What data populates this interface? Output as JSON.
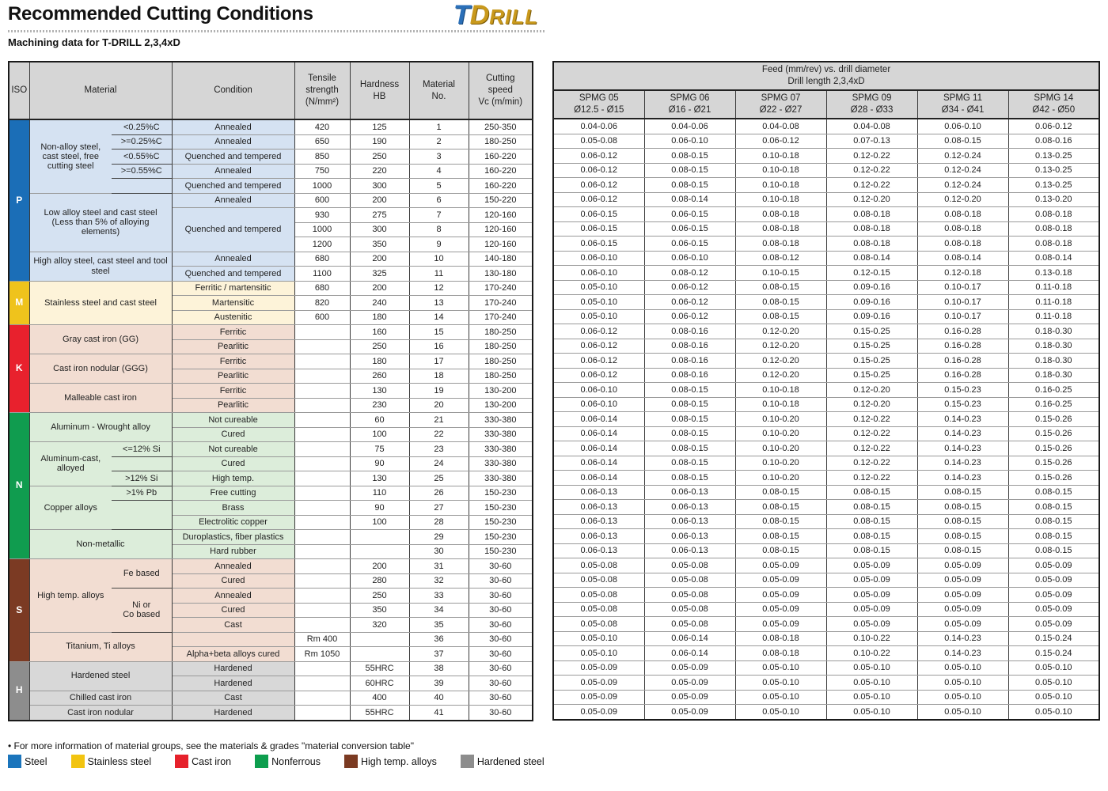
{
  "header": {
    "title": "Recommended Cutting Conditions",
    "subtitle": "Machining data for T-DRILL 2,3,4xD",
    "logo": {
      "t": "T",
      "d": "D",
      "rill": "RILL"
    }
  },
  "left_table": {
    "headers": {
      "iso": "ISO",
      "material": "Material",
      "condition": "Condition",
      "tensile": "Tensile\nstrength\n(N/mm²)",
      "hardness": "Hardness\nHB",
      "material_no": "Material\nNo.",
      "cutting_speed": "Cutting\nspeed\nVc (m/min)"
    },
    "sections": [
      {
        "label": "P",
        "color": "#1b6eb7",
        "tint": "#d5e2f2",
        "from": 1,
        "to": 11
      },
      {
        "label": "M",
        "color": "#efc31c",
        "tint": "#fdf3d9",
        "from": 12,
        "to": 14
      },
      {
        "label": "K",
        "color": "#e8212d",
        "tint": "#f2ddd2",
        "from": 15,
        "to": 20
      },
      {
        "label": "N",
        "color": "#109c4f",
        "tint": "#dcedda",
        "from": 21,
        "to": 30
      },
      {
        "label": "S",
        "color": "#7b3a23",
        "tint": "#f2ddd2",
        "from": 31,
        "to": 37
      },
      {
        "label": "H",
        "color": "#8d8d8d",
        "tint": "#d8d8d8",
        "from": 38,
        "to": 41
      }
    ],
    "rows": [
      {
        "mat": {
          "text": "Non-alloy steel, cast steel, free cutting steel",
          "rows": 5
        },
        "sub": {
          "text": "<0.25%C",
          "u": 1
        },
        "cond": "Annealed",
        "t": "420",
        "h": "125",
        "n": "1",
        "vc": "250-350"
      },
      {
        "sub": {
          "text": ">=0.25%C",
          "u": 1
        },
        "cond": "Annealed",
        "t": "650",
        "h": "190",
        "n": "2",
        "vc": "180-250"
      },
      {
        "sub": {
          "text": "<0.55%C",
          "u": 1
        },
        "cond": "Quenched and tempered",
        "t": "850",
        "h": "250",
        "n": "3",
        "vc": "160-220"
      },
      {
        "sub": {
          "text": ">=0.55%C",
          "u": 1
        },
        "cond": "Annealed",
        "t": "750",
        "h": "220",
        "n": "4",
        "vc": "160-220"
      },
      {
        "sub": {
          "text": "",
          "u": 1
        },
        "cond": "Quenched and tempered",
        "t": "1000",
        "h": "300",
        "n": "5",
        "vc": "160-220"
      },
      {
        "mat": {
          "text": "Low alloy steel and cast steel (Less than 5% of alloying elements)",
          "rows": 4,
          "cols": 2
        },
        "cond": "Annealed",
        "t": "600",
        "h": "200",
        "n": "6",
        "vc": "150-220"
      },
      {
        "cond": {
          "text": "Quenched and tempered",
          "rows": 3
        },
        "t": "930",
        "h": "275",
        "n": "7",
        "vc": "120-160"
      },
      {
        "t": "1000",
        "h": "300",
        "n": "8",
        "vc": "120-160"
      },
      {
        "t": "1200",
        "h": "350",
        "n": "9",
        "vc": "120-160"
      },
      {
        "mat": {
          "text": "High alloy steel, cast steel and tool steel",
          "rows": 2,
          "cols": 2
        },
        "cond": "Annealed",
        "t": "680",
        "h": "200",
        "n": "10",
        "vc": "140-180"
      },
      {
        "cond": "Quenched and tempered",
        "t": "1100",
        "h": "325",
        "n": "11",
        "vc": "130-180"
      },
      {
        "mat": {
          "text": "Stainless steel and cast steel",
          "rows": 3,
          "cols": 2
        },
        "cond": "Ferritic / martensitic",
        "t": "680",
        "h": "200",
        "n": "12",
        "vc": "170-240"
      },
      {
        "cond": "Martensitic",
        "t": "820",
        "h": "240",
        "n": "13",
        "vc": "170-240"
      },
      {
        "cond": "Austenitic",
        "t": "600",
        "h": "180",
        "n": "14",
        "vc": "170-240"
      },
      {
        "mat": {
          "text": "Gray cast iron (GG)",
          "rows": 2,
          "cols": 2
        },
        "cond": "Ferritic",
        "t": "",
        "h": "160",
        "n": "15",
        "vc": "180-250"
      },
      {
        "cond": "Pearlitic",
        "t": "",
        "h": "250",
        "n": "16",
        "vc": "180-250"
      },
      {
        "mat": {
          "text": "Cast iron nodular (GGG)",
          "rows": 2,
          "cols": 2
        },
        "cond": "Ferritic",
        "t": "",
        "h": "180",
        "n": "17",
        "vc": "180-250"
      },
      {
        "cond": "Pearlitic",
        "t": "",
        "h": "260",
        "n": "18",
        "vc": "180-250"
      },
      {
        "mat": {
          "text": "Malleable cast iron",
          "rows": 2,
          "cols": 2
        },
        "cond": "Ferritic",
        "t": "",
        "h": "130",
        "n": "19",
        "vc": "130-200"
      },
      {
        "cond": "Pearlitic",
        "t": "",
        "h": "230",
        "n": "20",
        "vc": "130-200"
      },
      {
        "mat": {
          "text": "Aluminum - Wrought alloy",
          "rows": 2,
          "cols": 2
        },
        "cond": "Not cureable",
        "t": "",
        "h": "60",
        "n": "21",
        "vc": "330-380"
      },
      {
        "cond": "Cured",
        "t": "",
        "h": "100",
        "n": "22",
        "vc": "330-380"
      },
      {
        "mat": {
          "text": "Aluminum-cast, alloyed",
          "rows": 3
        },
        "sub": {
          "text": "<=12% Si",
          "u": 1
        },
        "cond": "Not cureable",
        "t": "",
        "h": "75",
        "n": "23",
        "vc": "330-380"
      },
      {
        "sub": {
          "text": "",
          "u": 1
        },
        "cond": "Cured",
        "t": "",
        "h": "90",
        "n": "24",
        "vc": "330-380"
      },
      {
        "sub": {
          "text": ">12% Si",
          "u": 1
        },
        "cond": "High temp.",
        "t": "",
        "h": "130",
        "n": "25",
        "vc": "330-380"
      },
      {
        "mat": {
          "text": "Copper alloys",
          "rows": 3
        },
        "sub": {
          "text": ">1% Pb",
          "u": 1
        },
        "cond": "Free cutting",
        "t": "",
        "h": "110",
        "n": "26",
        "vc": "150-230"
      },
      {
        "sub": {
          "text": "",
          "u": 0
        },
        "cond": "Brass",
        "t": "",
        "h": "90",
        "n": "27",
        "vc": "150-230"
      },
      {
        "sub": {
          "text": "",
          "u": 1
        },
        "cond": "Electrolitic copper",
        "t": "",
        "h": "100",
        "n": "28",
        "vc": "150-230"
      },
      {
        "mat": {
          "text": "Non-metallic",
          "rows": 2,
          "cols": 2
        },
        "cond": "Duroplastics, fiber plastics",
        "t": "",
        "h": "",
        "n": "29",
        "vc": "150-230"
      },
      {
        "cond": "Hard rubber",
        "t": "",
        "h": "",
        "n": "30",
        "vc": "150-230"
      },
      {
        "mat": {
          "text": "High temp. alloys",
          "rows": 5
        },
        "sub": {
          "text": "Fe based",
          "rows": 2,
          "u": 1
        },
        "cond": "Annealed",
        "t": "",
        "h": "200",
        "n": "31",
        "vc": "30-60"
      },
      {
        "cond": "Cured",
        "t": "",
        "h": "280",
        "n": "32",
        "vc": "30-60"
      },
      {
        "sub": {
          "text": "Ni or\nCo based",
          "rows": 3,
          "u": 1
        },
        "cond": "Annealed",
        "t": "",
        "h": "250",
        "n": "33",
        "vc": "30-60"
      },
      {
        "cond": "Cured",
        "t": "",
        "h": "350",
        "n": "34",
        "vc": "30-60"
      },
      {
        "cond": "Cast",
        "t": "",
        "h": "320",
        "n": "35",
        "vc": "30-60"
      },
      {
        "mat": {
          "text": "Titanium, Ti alloys",
          "rows": 2,
          "cols": 2
        },
        "cond": "",
        "t": "Rm 400",
        "h": "",
        "n": "36",
        "vc": "30-60"
      },
      {
        "cond": "Alpha+beta alloys cured",
        "t": "Rm 1050",
        "h": "",
        "n": "37",
        "vc": "30-60"
      },
      {
        "mat": {
          "text": "Hardened steel",
          "rows": 2,
          "cols": 2
        },
        "cond": "Hardened",
        "t": "",
        "h": "55HRC",
        "n": "38",
        "vc": "30-60"
      },
      {
        "cond": "Hardened",
        "t": "",
        "h": "60HRC",
        "n": "39",
        "vc": "30-60"
      },
      {
        "mat": {
          "text": "Chilled cast iron",
          "cols": 2
        },
        "cond": "Cast",
        "t": "",
        "h": "400",
        "n": "40",
        "vc": "30-60"
      },
      {
        "mat": {
          "text": "Cast iron nodular",
          "cols": 2
        },
        "cond": "Hardened",
        "t": "",
        "h": "55HRC",
        "n": "41",
        "vc": "30-60"
      }
    ]
  },
  "right_table": {
    "title": "Feed (mm/rev) vs. drill diameter\nDrill length 2,3,4xD",
    "columns": [
      {
        "name": "SPMG 05",
        "range": "Ø12.5 - Ø15"
      },
      {
        "name": "SPMG 06",
        "range": "Ø16 - Ø21"
      },
      {
        "name": "SPMG 07",
        "range": "Ø22 - Ø27"
      },
      {
        "name": "SPMG 09",
        "range": "Ø28 - Ø33"
      },
      {
        "name": "SPMG 11",
        "range": "Ø34 - Ø41"
      },
      {
        "name": "SPMG 14",
        "range": "Ø42 - Ø50"
      }
    ],
    "rows": [
      [
        "0.04-0.06",
        "0.04-0.06",
        "0.04-0.08",
        "0.04-0.08",
        "0.06-0.10",
        "0.06-0.12"
      ],
      [
        "0.05-0.08",
        "0.06-0.10",
        "0.06-0.12",
        "0.07-0.13",
        "0.08-0.15",
        "0.08-0.16"
      ],
      [
        "0.06-0.12",
        "0.08-0.15",
        "0.10-0.18",
        "0.12-0.22",
        "0.12-0.24",
        "0.13-0.25"
      ],
      [
        "0.06-0.12",
        "0.08-0.15",
        "0.10-0.18",
        "0.12-0.22",
        "0.12-0.24",
        "0.13-0.25"
      ],
      [
        "0.06-0.12",
        "0.08-0.15",
        "0.10-0.18",
        "0.12-0.22",
        "0.12-0.24",
        "0.13-0.25"
      ],
      [
        "0.06-0.12",
        "0.08-0.14",
        "0.10-0.18",
        "0.12-0.20",
        "0.12-0.20",
        "0.13-0.20"
      ],
      [
        "0.06-0.15",
        "0.06-0.15",
        "0.08-0.18",
        "0.08-0.18",
        "0.08-0.18",
        "0.08-0.18"
      ],
      [
        "0.06-0.15",
        "0.06-0.15",
        "0.08-0.18",
        "0.08-0.18",
        "0.08-0.18",
        "0.08-0.18"
      ],
      [
        "0.06-0.15",
        "0.06-0.15",
        "0.08-0.18",
        "0.08-0.18",
        "0.08-0.18",
        "0.08-0.18"
      ],
      [
        "0.06-0.10",
        "0.06-0.10",
        "0.08-0.12",
        "0.08-0.14",
        "0.08-0.14",
        "0.08-0.14"
      ],
      [
        "0.06-0.10",
        "0.08-0.12",
        "0.10-0.15",
        "0.12-0.15",
        "0.12-0.18",
        "0.13-0.18"
      ],
      [
        "0.05-0.10",
        "0.06-0.12",
        "0.08-0.15",
        "0.09-0.16",
        "0.10-0.17",
        "0.11-0.18"
      ],
      [
        "0.05-0.10",
        "0.06-0.12",
        "0.08-0.15",
        "0.09-0.16",
        "0.10-0.17",
        "0.11-0.18"
      ],
      [
        "0.05-0.10",
        "0.06-0.12",
        "0.08-0.15",
        "0.09-0.16",
        "0.10-0.17",
        "0.11-0.18"
      ],
      [
        "0.06-0.12",
        "0.08-0.16",
        "0.12-0.20",
        "0.15-0.25",
        "0.16-0.28",
        "0.18-0.30"
      ],
      [
        "0.06-0.12",
        "0.08-0.16",
        "0.12-0.20",
        "0.15-0.25",
        "0.16-0.28",
        "0.18-0.30"
      ],
      [
        "0.06-0.12",
        "0.08-0.16",
        "0.12-0.20",
        "0.15-0.25",
        "0.16-0.28",
        "0.18-0.30"
      ],
      [
        "0.06-0.12",
        "0.08-0.16",
        "0.12-0.20",
        "0.15-0.25",
        "0.16-0.28",
        "0.18-0.30"
      ],
      [
        "0.06-0.10",
        "0.08-0.15",
        "0.10-0.18",
        "0.12-0.20",
        "0.15-0.23",
        "0.16-0.25"
      ],
      [
        "0.06-0.10",
        "0.08-0.15",
        "0.10-0.18",
        "0.12-0.20",
        "0.15-0.23",
        "0.16-0.25"
      ],
      [
        "0.06-0.14",
        "0.08-0.15",
        "0.10-0.20",
        "0.12-0.22",
        "0.14-0.23",
        "0.15-0.26"
      ],
      [
        "0.06-0.14",
        "0.08-0.15",
        "0.10-0.20",
        "0.12-0.22",
        "0.14-0.23",
        "0.15-0.26"
      ],
      [
        "0.06-0.14",
        "0.08-0.15",
        "0.10-0.20",
        "0.12-0.22",
        "0.14-0.23",
        "0.15-0.26"
      ],
      [
        "0.06-0.14",
        "0.08-0.15",
        "0.10-0.20",
        "0.12-0.22",
        "0.14-0.23",
        "0.15-0.26"
      ],
      [
        "0.06-0.14",
        "0.08-0.15",
        "0.10-0.20",
        "0.12-0.22",
        "0.14-0.23",
        "0.15-0.26"
      ],
      [
        "0.06-0.13",
        "0.06-0.13",
        "0.08-0.15",
        "0.08-0.15",
        "0.08-0.15",
        "0.08-0.15"
      ],
      [
        "0.06-0.13",
        "0.06-0.13",
        "0.08-0.15",
        "0.08-0.15",
        "0.08-0.15",
        "0.08-0.15"
      ],
      [
        "0.06-0.13",
        "0.06-0.13",
        "0.08-0.15",
        "0.08-0.15",
        "0.08-0.15",
        "0.08-0.15"
      ],
      [
        "0.06-0.13",
        "0.06-0.13",
        "0.08-0.15",
        "0.08-0.15",
        "0.08-0.15",
        "0.08-0.15"
      ],
      [
        "0.06-0.13",
        "0.06-0.13",
        "0.08-0.15",
        "0.08-0.15",
        "0.08-0.15",
        "0.08-0.15"
      ],
      [
        "0.05-0.08",
        "0.05-0.08",
        "0.05-0.09",
        "0.05-0.09",
        "0.05-0.09",
        "0.05-0.09"
      ],
      [
        "0.05-0.08",
        "0.05-0.08",
        "0.05-0.09",
        "0.05-0.09",
        "0.05-0.09",
        "0.05-0.09"
      ],
      [
        "0.05-0.08",
        "0.05-0.08",
        "0.05-0.09",
        "0.05-0.09",
        "0.05-0.09",
        "0.05-0.09"
      ],
      [
        "0.05-0.08",
        "0.05-0.08",
        "0.05-0.09",
        "0.05-0.09",
        "0.05-0.09",
        "0.05-0.09"
      ],
      [
        "0.05-0.08",
        "0.05-0.08",
        "0.05-0.09",
        "0.05-0.09",
        "0.05-0.09",
        "0.05-0.09"
      ],
      [
        "0.05-0.10",
        "0.06-0.14",
        "0.08-0.18",
        "0.10-0.22",
        "0.14-0.23",
        "0.15-0.24"
      ],
      [
        "0.05-0.10",
        "0.06-0.14",
        "0.08-0.18",
        "0.10-0.22",
        "0.14-0.23",
        "0.15-0.24"
      ],
      [
        "0.05-0.09",
        "0.05-0.09",
        "0.05-0.10",
        "0.05-0.10",
        "0.05-0.10",
        "0.05-0.10"
      ],
      [
        "0.05-0.09",
        "0.05-0.09",
        "0.05-0.10",
        "0.05-0.10",
        "0.05-0.10",
        "0.05-0.10"
      ],
      [
        "0.05-0.09",
        "0.05-0.09",
        "0.05-0.10",
        "0.05-0.10",
        "0.05-0.10",
        "0.05-0.10"
      ],
      [
        "0.05-0.09",
        "0.05-0.09",
        "0.05-0.10",
        "0.05-0.10",
        "0.05-0.10",
        "0.05-0.10"
      ]
    ]
  },
  "footer": {
    "note": "• For more information of material groups, see the materials & grades \"material conversion table\"",
    "legend": [
      {
        "label": "Steel",
        "color": "#1b75bc"
      },
      {
        "label": "Stainless steel",
        "color": "#f2c410"
      },
      {
        "label": "Cast iron",
        "color": "#e6212b"
      },
      {
        "label": "Nonferrous",
        "color": "#0d9e4e"
      },
      {
        "label": "High temp. alloys",
        "color": "#7b3a22"
      },
      {
        "label": "Hardened steel",
        "color": "#8d8d8d"
      }
    ]
  }
}
